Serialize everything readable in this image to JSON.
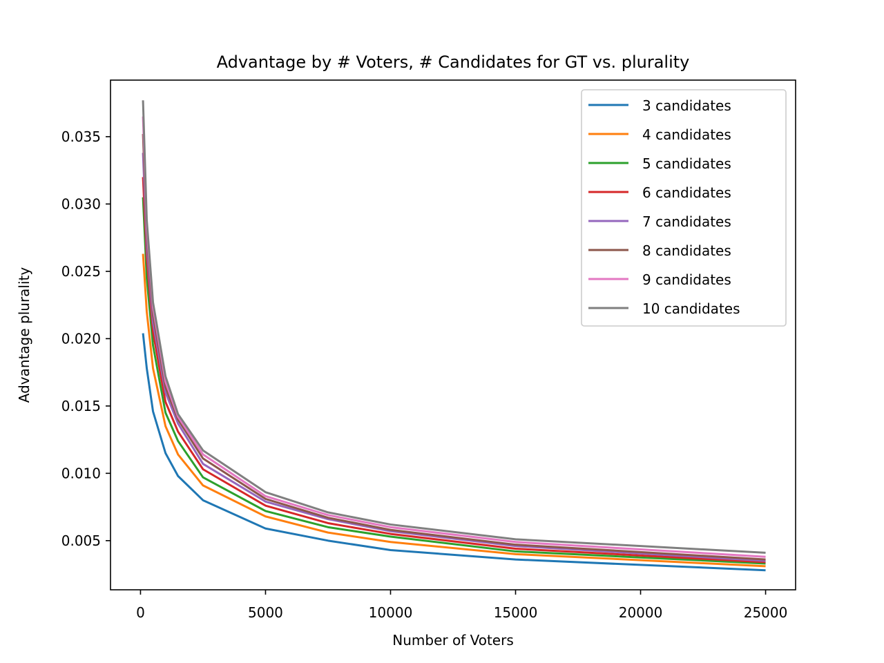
{
  "chart_data": {
    "type": "line",
    "title": "Advantage by # Voters, # Candidates for GT vs. plurality",
    "xlabel": "Number of Voters",
    "ylabel": "Advantage plurality",
    "xlim": [
      -1200,
      26200
    ],
    "ylim": [
      0.00135,
      0.0392
    ],
    "xticks": [
      0,
      5000,
      10000,
      15000,
      20000,
      25000
    ],
    "xtick_labels": [
      "0",
      "5000",
      "10000",
      "15000",
      "20000",
      "25000"
    ],
    "yticks": [
      0.005,
      0.01,
      0.015,
      0.02,
      0.025,
      0.03,
      0.035
    ],
    "ytick_labels": [
      "0.005",
      "0.010",
      "0.015",
      "0.020",
      "0.025",
      "0.030",
      "0.035"
    ],
    "grid": false,
    "legend_position": "top-right",
    "x": [
      100,
      250,
      500,
      1000,
      1500,
      2500,
      5000,
      7500,
      10000,
      15000,
      25000
    ],
    "series": [
      {
        "name": "3 candidates",
        "color": "#1f77b4",
        "values": [
          0.0204,
          0.0178,
          0.0146,
          0.0115,
          0.0098,
          0.008,
          0.0059,
          0.005,
          0.0043,
          0.0036,
          0.0028
        ]
      },
      {
        "name": "4 candidates",
        "color": "#ff7f0e",
        "values": [
          0.0263,
          0.022,
          0.0178,
          0.0135,
          0.0114,
          0.0091,
          0.0068,
          0.0056,
          0.0049,
          0.004,
          0.0031
        ]
      },
      {
        "name": "5 candidates",
        "color": "#2ca02c",
        "values": [
          0.0305,
          0.0245,
          0.0195,
          0.0145,
          0.0124,
          0.0097,
          0.0072,
          0.006,
          0.0053,
          0.0042,
          0.0033
        ]
      },
      {
        "name": "6 candidates",
        "color": "#d62728",
        "values": [
          0.032,
          0.026,
          0.0205,
          0.0153,
          0.0131,
          0.0103,
          0.0076,
          0.0063,
          0.0055,
          0.0044,
          0.0034
        ]
      },
      {
        "name": "7 candidates",
        "color": "#9467bd",
        "values": [
          0.0338,
          0.0268,
          0.0212,
          0.016,
          0.0137,
          0.0107,
          0.0079,
          0.0066,
          0.0057,
          0.0046,
          0.0035
        ]
      },
      {
        "name": "8 candidates",
        "color": "#8c564b",
        "values": [
          0.0352,
          0.0276,
          0.0218,
          0.0164,
          0.014,
          0.0111,
          0.0081,
          0.0067,
          0.0058,
          0.0047,
          0.0036
        ]
      },
      {
        "name": "9 candidates",
        "color": "#e377c2",
        "values": [
          0.0365,
          0.0282,
          0.0223,
          0.0168,
          0.0142,
          0.0114,
          0.0083,
          0.0069,
          0.006,
          0.0049,
          0.0038
        ]
      },
      {
        "name": "10 candidates",
        "color": "#7f7f7f",
        "values": [
          0.0377,
          0.0288,
          0.0227,
          0.0172,
          0.0144,
          0.0117,
          0.0086,
          0.0071,
          0.0062,
          0.0051,
          0.0041
        ]
      }
    ]
  }
}
